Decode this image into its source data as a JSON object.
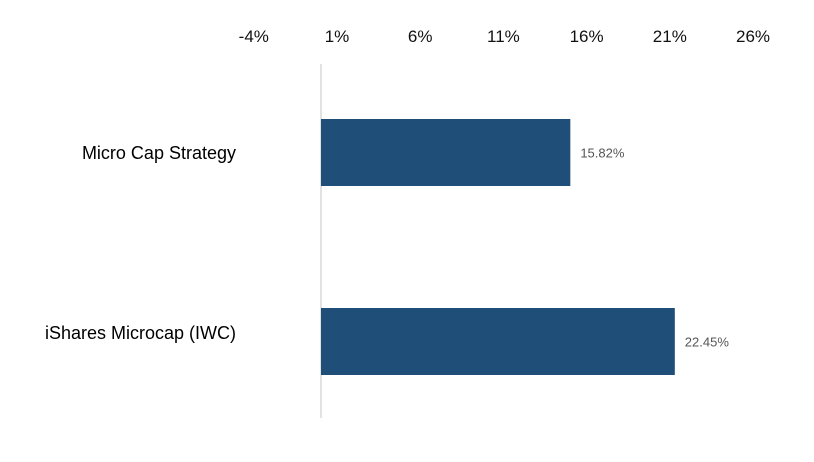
{
  "chart_data": {
    "type": "bar",
    "orientation": "horizontal",
    "title": "",
    "xlabel": "",
    "ylabel": "",
    "categories": [
      "Micro Cap Strategy",
      "iShares Microcap (IWC)"
    ],
    "values": [
      15.82,
      22.45
    ],
    "value_labels": [
      "15.82%",
      "22.45%"
    ],
    "xlim": [
      -4,
      26
    ],
    "x_ticks": [
      -4,
      1,
      6,
      11,
      16,
      21,
      26
    ],
    "x_tick_labels": [
      "-4%",
      "1%",
      "6%",
      "11%",
      "16%",
      "21%",
      "26%"
    ],
    "axis_position": "top",
    "grid": false,
    "legend": "none",
    "bar_color": "#1F4E79",
    "axis_line_color": "#d9d9d9"
  }
}
